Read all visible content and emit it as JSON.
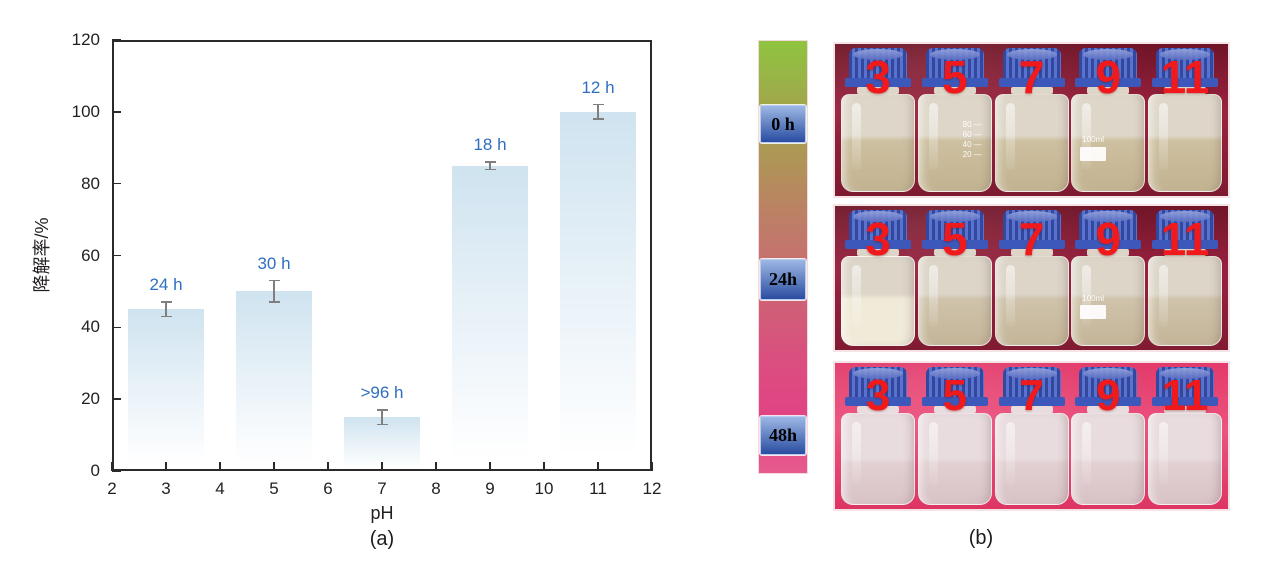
{
  "figure": {
    "panel_a_caption": "(a)",
    "panel_b_caption": "(b)"
  },
  "chart_data": {
    "type": "bar",
    "title": "",
    "xlabel": "pH",
    "ylabel": "降解率/%",
    "xlim": [
      2,
      12
    ],
    "ylim": [
      0,
      120
    ],
    "xticks": [
      2,
      3,
      4,
      5,
      6,
      7,
      8,
      9,
      10,
      11,
      12
    ],
    "yticks": [
      0,
      20,
      40,
      60,
      80,
      100,
      120
    ],
    "grid": false,
    "legend": "none",
    "categories": [
      3,
      5,
      7,
      9,
      11
    ],
    "values": [
      45,
      50,
      15,
      85,
      100
    ],
    "errors": [
      2,
      3,
      2,
      1,
      2
    ],
    "bar_labels": [
      "24 h",
      "30 h",
      ">96 h",
      "18 h",
      "12 h"
    ],
    "bar_color_top": "#cfe3f0",
    "bar_color_mid": "#e9f2f8",
    "bar_color_bottom": "#ffffff",
    "bar_label_color": "#2f6fbe",
    "axis_color": "#2b2a29",
    "error_bar_color": "#7f7f7f"
  },
  "panel_b": {
    "number_color": "#f0191c",
    "cap_rib_dark": "#33479f",
    "cap_rib_light": "#5873cd",
    "cap_skirt_color": "#3d58bb",
    "timeline": {
      "labels": [
        "0 h",
        "24h",
        "48h"
      ],
      "stops": [
        {
          "p": 0,
          "c": "#8fc43f"
        },
        {
          "p": 9,
          "c": "#99b347"
        },
        {
          "p": 17,
          "c": "#a5a24d"
        },
        {
          "p": 27,
          "c": "#ae9656"
        },
        {
          "p": 39,
          "c": "#bb8264"
        },
        {
          "p": 50,
          "c": "#c5726e"
        },
        {
          "p": 61,
          "c": "#cf6076"
        },
        {
          "p": 73,
          "c": "#da4f80"
        },
        {
          "p": 86,
          "c": "#e14483"
        },
        {
          "p": 100,
          "c": "#e65b8e"
        }
      ],
      "box": {
        "top": "#9db7e4",
        "bottom": "#2a4da1",
        "border": "#b9cdf0",
        "text": "#000000"
      }
    },
    "photos": [
      {
        "time": "0 h",
        "numbers": [
          "3",
          "5",
          "7",
          "9",
          "11"
        ],
        "cloth": [
          "#6f1426",
          "#9c2340",
          "#7c1a30"
        ],
        "glass_top": "#ded7c9",
        "liquid": "#cdc0a0",
        "liquid_deep": "#c2b391",
        "milky_index": -1,
        "milky_color": "",
        "scale_bottle": 1,
        "scale_marks": [
          "80",
          "60",
          "40",
          "20"
        ],
        "volume_bottle": 3,
        "volume_label": "100ml"
      },
      {
        "time": "24h",
        "numbers": [
          "3",
          "5",
          "7",
          "9",
          "11"
        ],
        "cloth": [
          "#701528",
          "#992140",
          "#801b32"
        ],
        "glass_top": "#dcd5c8",
        "liquid": "#cfc3ab",
        "liquid_deep": "#c4b598",
        "milky_index": 0,
        "milky_color": "#f0ead9",
        "scale_bottle": -1,
        "scale_marks": [],
        "volume_bottle": 3,
        "volume_label": "100ml"
      },
      {
        "time": "48h",
        "numbers": [
          "3",
          "5",
          "7",
          "9",
          "11"
        ],
        "cloth": [
          "#e23a6b",
          "#ec537f",
          "#dd3563"
        ],
        "glass_top": "#e9dcde",
        "liquid": "#e2d0d2",
        "liquid_deep": "#d8c2c6",
        "milky_index": -1,
        "milky_color": "",
        "scale_bottle": -1,
        "scale_marks": [],
        "volume_bottle": -1,
        "volume_label": ""
      }
    ]
  }
}
